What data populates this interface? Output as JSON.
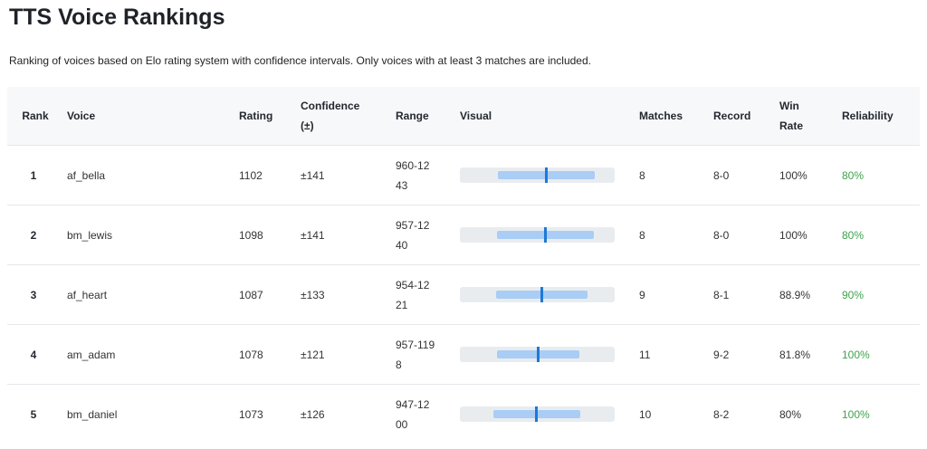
{
  "page": {
    "title": "TTS Voice Rankings",
    "subtitle": "Ranking of voices based on Elo rating system with confidence intervals. Only voices with at least 3 matches are included."
  },
  "table": {
    "headers": {
      "rank": "Rank",
      "voice": "Voice",
      "rating": "Rating",
      "confidence": "Confidence (±)",
      "range": "Range",
      "visual": "Visual",
      "matches": "Matches",
      "record": "Record",
      "win_rate": "Win Rate",
      "reliability": "Reliability"
    },
    "rows": [
      {
        "rank": "1",
        "voice": "af_bella",
        "rating": "1102",
        "confidence": "±141",
        "range": "960-1243",
        "matches": "8",
        "record": "8-0",
        "win_rate": "100%",
        "reliability": "80%",
        "low": 960,
        "high": 1243,
        "value": 1102
      },
      {
        "rank": "2",
        "voice": "bm_lewis",
        "rating": "1098",
        "confidence": "±141",
        "range": "957-1240",
        "matches": "8",
        "record": "8-0",
        "win_rate": "100%",
        "reliability": "80%",
        "low": 957,
        "high": 1240,
        "value": 1098
      },
      {
        "rank": "3",
        "voice": "af_heart",
        "rating": "1087",
        "confidence": "±133",
        "range": "954-1221",
        "matches": "9",
        "record": "8-1",
        "win_rate": "88.9%",
        "reliability": "90%",
        "low": 954,
        "high": 1221,
        "value": 1087
      },
      {
        "rank": "4",
        "voice": "am_adam",
        "rating": "1078",
        "confidence": "±121",
        "range": "957-1198",
        "matches": "11",
        "record": "9-2",
        "win_rate": "81.8%",
        "reliability": "100%",
        "low": 957,
        "high": 1198,
        "value": 1078
      },
      {
        "rank": "5",
        "voice": "bm_daniel",
        "rating": "1073",
        "confidence": "±126",
        "range": "947-1200",
        "matches": "10",
        "record": "8-2",
        "win_rate": "80%",
        "reliability": "100%",
        "low": 947,
        "high": 1200,
        "value": 1073
      }
    ]
  },
  "colors": {
    "header_bg": "#f6f8fa",
    "reliability_green": "#3fa34d",
    "ci_bar": "#a9cdf5",
    "rating_marker": "#1f78d6",
    "visual_track": "#e9ecef"
  }
}
